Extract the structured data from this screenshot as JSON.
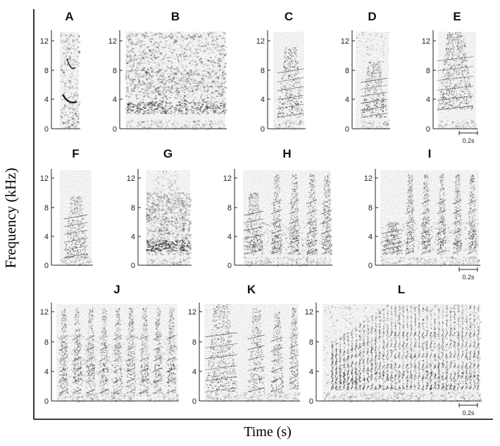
{
  "figure": {
    "y_axis_label": "Frequency (kHz)",
    "x_axis_label": "Time (s)",
    "scale_bar_label": "0.2s",
    "tick_labels": [
      "0",
      "4",
      "8",
      "12"
    ],
    "panels": [
      {
        "letter": "A",
        "row": 1,
        "pattern": "A"
      },
      {
        "letter": "B",
        "row": 1,
        "pattern": "B"
      },
      {
        "letter": "C",
        "row": 1,
        "pattern": "C"
      },
      {
        "letter": "D",
        "row": 1,
        "pattern": "D"
      },
      {
        "letter": "E",
        "row": 1,
        "pattern": "E"
      },
      {
        "letter": "F",
        "row": 2,
        "pattern": "F"
      },
      {
        "letter": "G",
        "row": 2,
        "pattern": "G"
      },
      {
        "letter": "H",
        "row": 2,
        "pattern": "H"
      },
      {
        "letter": "I",
        "row": 2,
        "pattern": "I"
      },
      {
        "letter": "J",
        "row": 3,
        "pattern": "J"
      },
      {
        "letter": "K",
        "row": 3,
        "pattern": "K"
      },
      {
        "letter": "L",
        "row": 3,
        "pattern": "L"
      }
    ]
  }
}
